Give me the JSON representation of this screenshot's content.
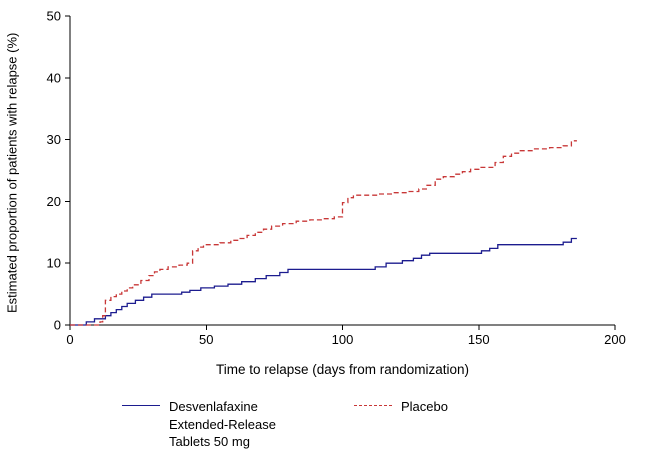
{
  "chart_data": {
    "type": "line",
    "title": "",
    "xlabel": "Time to relapse (days from randomization)",
    "ylabel": "Estimated proportion of patients with relapse (%)",
    "xlim": [
      0,
      200
    ],
    "ylim": [
      0,
      50
    ],
    "xticks": [
      0,
      50,
      100,
      150,
      200
    ],
    "yticks": [
      0,
      10,
      20,
      30,
      40,
      50
    ],
    "grid": false,
    "legend_position": "bottom",
    "axis_color": "#000000",
    "series": [
      {
        "name": "Desvenlafaxine Extended-Release Tablets 50 mg",
        "color": "#1c1c8f",
        "line_style": "solid",
        "step": true,
        "points": [
          [
            0,
            0
          ],
          [
            6,
            0.5
          ],
          [
            9,
            1
          ],
          [
            13,
            1.5
          ],
          [
            15,
            2
          ],
          [
            17,
            2.5
          ],
          [
            19,
            3
          ],
          [
            21,
            3.5
          ],
          [
            24,
            4
          ],
          [
            27,
            4.5
          ],
          [
            30,
            5
          ],
          [
            41,
            5.3
          ],
          [
            44,
            5.6
          ],
          [
            48,
            6
          ],
          [
            53,
            6.3
          ],
          [
            58,
            6.6
          ],
          [
            63,
            7
          ],
          [
            68,
            7.5
          ],
          [
            72,
            8
          ],
          [
            77,
            8.5
          ],
          [
            80,
            9
          ],
          [
            112,
            9.4
          ],
          [
            116,
            10
          ],
          [
            122,
            10.4
          ],
          [
            126,
            10.8
          ],
          [
            129,
            11.3
          ],
          [
            132,
            11.6
          ],
          [
            151,
            12
          ],
          [
            154,
            12.4
          ],
          [
            157,
            13
          ],
          [
            181,
            13.4
          ],
          [
            184,
            14
          ],
          [
            186,
            14
          ]
        ]
      },
      {
        "name": "Placebo",
        "color": "#c83737",
        "line_style": "dashed",
        "step": true,
        "points": [
          [
            0,
            0
          ],
          [
            11,
            0.5
          ],
          [
            12,
            1.5
          ],
          [
            13,
            4
          ],
          [
            15,
            4.6
          ],
          [
            17,
            5
          ],
          [
            19,
            5.5
          ],
          [
            21,
            6
          ],
          [
            23,
            6.5
          ],
          [
            26,
            7.2
          ],
          [
            29,
            8
          ],
          [
            31,
            8.6
          ],
          [
            33,
            9
          ],
          [
            36,
            9.4
          ],
          [
            40,
            9.7
          ],
          [
            43,
            10
          ],
          [
            45,
            12
          ],
          [
            47,
            12.6
          ],
          [
            49,
            13
          ],
          [
            55,
            13.3
          ],
          [
            59,
            13.7
          ],
          [
            62,
            14
          ],
          [
            65,
            14.5
          ],
          [
            68,
            15
          ],
          [
            71,
            15.5
          ],
          [
            74,
            16
          ],
          [
            78,
            16.4
          ],
          [
            83,
            16.8
          ],
          [
            88,
            17
          ],
          [
            93,
            17.2
          ],
          [
            97,
            17.5
          ],
          [
            100,
            19.8
          ],
          [
            102,
            20.6
          ],
          [
            104,
            21
          ],
          [
            113,
            21.2
          ],
          [
            119,
            21.4
          ],
          [
            124,
            21.6
          ],
          [
            128,
            22
          ],
          [
            131,
            22.6
          ],
          [
            134,
            23.6
          ],
          [
            137,
            24
          ],
          [
            141,
            24.4
          ],
          [
            144,
            24.8
          ],
          [
            147,
            25.2
          ],
          [
            150,
            25.5
          ],
          [
            156,
            26.3
          ],
          [
            159,
            27.3
          ],
          [
            162,
            27.8
          ],
          [
            165,
            28.2
          ],
          [
            170,
            28.5
          ],
          [
            176,
            28.7
          ],
          [
            181,
            29
          ],
          [
            184,
            29.8
          ],
          [
            186,
            29.8
          ]
        ]
      }
    ]
  },
  "legend": {
    "items": [
      {
        "label": "Desvenlafaxine\nExtended-Release\nTablets 50 mg",
        "style": "solid",
        "color": "#1c1c8f"
      },
      {
        "label": "Placebo",
        "style": "dashed",
        "color": "#c83737"
      }
    ]
  }
}
